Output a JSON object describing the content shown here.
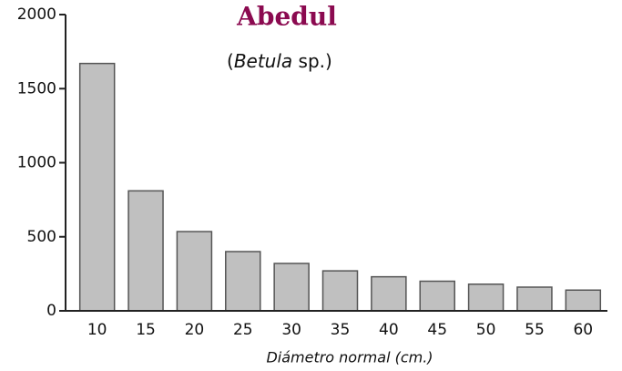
{
  "chart_data": {
    "type": "bar",
    "title": "Abedul",
    "subtitle": [
      "(",
      "Betula",
      " sp.)"
    ],
    "x_label": "Diámetro normal (cm.)",
    "categories": [
      "10",
      "15",
      "20",
      "25",
      "30",
      "35",
      "40",
      "45",
      "50",
      "55",
      "60"
    ],
    "values": [
      1670,
      810,
      535,
      400,
      320,
      270,
      230,
      200,
      180,
      160,
      140
    ],
    "color": "#c0c0c0",
    "ylim": [
      0,
      2000
    ],
    "yticks": [
      0,
      500,
      1000,
      1500,
      2000
    ],
    "grid": false
  }
}
